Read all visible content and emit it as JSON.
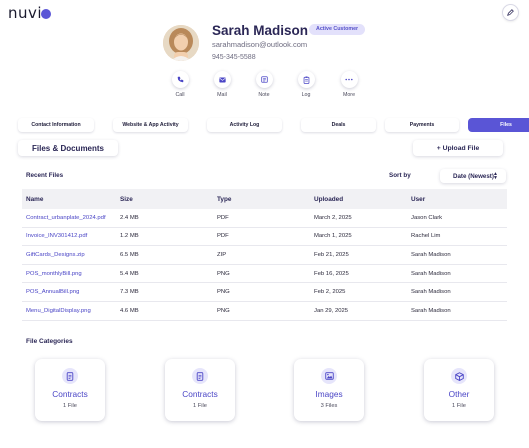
{
  "brand": {
    "logo_text": "nuvi",
    "accent": "#5a55d6"
  },
  "contact": {
    "name": "Sarah Madison",
    "badge": "Active Customer",
    "email": "sarahmadison@outlook.com",
    "phone": "945-345-5588"
  },
  "actions": [
    {
      "label": "Call",
      "icon": "phone-icon"
    },
    {
      "label": "Mail",
      "icon": "mail-icon"
    },
    {
      "label": "Note",
      "icon": "note-icon"
    },
    {
      "label": "Log",
      "icon": "log-icon"
    },
    {
      "label": "More",
      "icon": "more-icon"
    }
  ],
  "tabs": [
    {
      "label": "Contact Information"
    },
    {
      "label": "Website & App Activity"
    },
    {
      "label": "Activity Log"
    },
    {
      "label": "Deals"
    },
    {
      "label": "Payments"
    },
    {
      "label": "Files",
      "active": true
    }
  ],
  "files": {
    "section_title": "Files & Documents",
    "upload_label": "+ Upload File",
    "recent_title": "Recent Files",
    "sort_label": "Sort by",
    "sort_value": "Date (Newest)",
    "columns": [
      "Name",
      "Size",
      "Type",
      "Uploaded",
      "User"
    ],
    "rows": [
      {
        "name": "Contract_urbanplate_2024.pdf",
        "size": "2.4 MB",
        "type": "PDF",
        "uploaded": "March 2, 2025",
        "user": "Jason Clark"
      },
      {
        "name": "Invoice_INV301412.pdf",
        "size": "1.2 MB",
        "type": "PDF",
        "uploaded": "March 1, 2025",
        "user": "Rachel Lim"
      },
      {
        "name": "GiftCards_Designs.zip",
        "size": "6.5 MB",
        "type": "ZIP",
        "uploaded": "Feb 21, 2025",
        "user": "Sarah Madison"
      },
      {
        "name": "POS_monthlyBill.png",
        "size": "5.4 MB",
        "type": "PNG",
        "uploaded": "Feb 16, 2025",
        "user": "Sarah Madison"
      },
      {
        "name": "POS_AnnualBill.png",
        "size": "7.3 MB",
        "type": "PNG",
        "uploaded": "Feb 2, 2025",
        "user": "Sarah Madison"
      },
      {
        "name": "Menu_DigitalDisplay.png",
        "size": "4.6 MB",
        "type": "PNG",
        "uploaded": "Jan 29, 2025",
        "user": "Sarah Madison"
      }
    ]
  },
  "categories": {
    "title": "File Categories",
    "items": [
      {
        "name": "Contracts",
        "count": "1 File",
        "icon": "document-icon"
      },
      {
        "name": "Contracts",
        "count": "1 File",
        "icon": "document-icon"
      },
      {
        "name": "Images",
        "count": "3 Files",
        "icon": "image-icon"
      },
      {
        "name": "Other",
        "count": "1 File",
        "icon": "box-icon"
      }
    ]
  }
}
